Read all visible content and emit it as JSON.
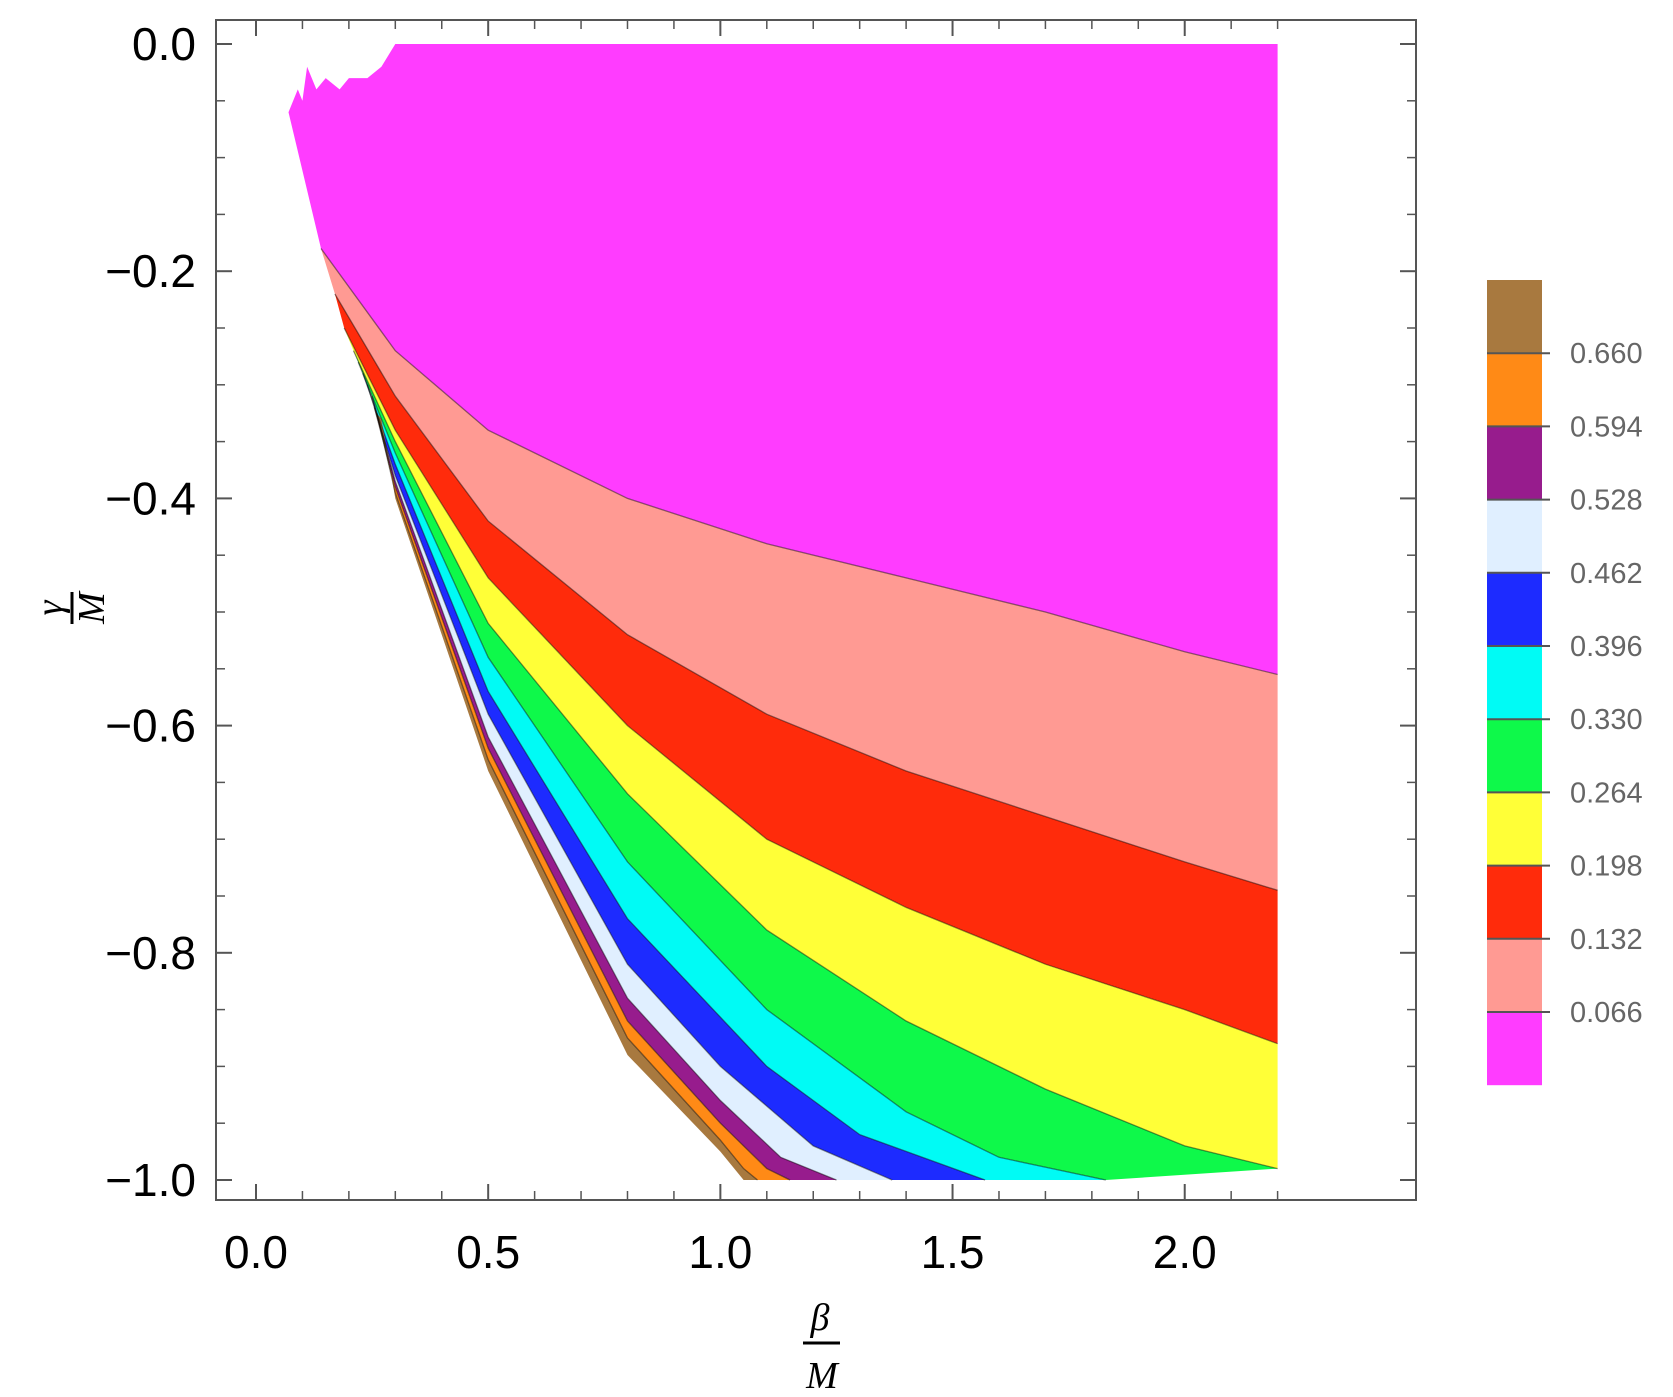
{
  "chart_data": {
    "type": "contour",
    "xlabel": {
      "numerator": "β",
      "denominator": "M"
    },
    "ylabel": {
      "numerator": "γ",
      "denominator": "M"
    },
    "xlim": [
      0.0,
      2.25
    ],
    "ylim": [
      -1.0,
      0.0
    ],
    "x_ticks": [
      {
        "value": 0.0,
        "label": "0.0"
      },
      {
        "value": 0.5,
        "label": "0.5"
      },
      {
        "value": 1.0,
        "label": "1.0"
      },
      {
        "value": 1.5,
        "label": "1.5"
      },
      {
        "value": 2.0,
        "label": "2.0"
      }
    ],
    "y_ticks": [
      {
        "value": 0.0,
        "label": "0.0"
      },
      {
        "value": -0.2,
        "label": "-0.2"
      },
      {
        "value": -0.4,
        "label": "-0.4"
      },
      {
        "value": -0.6,
        "label": "-0.6"
      },
      {
        "value": -0.8,
        "label": "-0.8"
      },
      {
        "value": -1.0,
        "label": "-1.0"
      }
    ],
    "legend": {
      "placement": "right",
      "levels": [
        "0.066",
        "0.132",
        "0.198",
        "0.264",
        "0.330",
        "0.396",
        "0.462",
        "0.528",
        "0.594",
        "0.660"
      ],
      "colors": [
        "#ff3cff",
        "#ff9a93",
        "#ff2b0b",
        "#ffff37",
        "#0ef94a",
        "#00fbf5",
        "#1d2bff",
        "#e0efff",
        "#971c8d",
        "#ff8a16",
        "#a8793f"
      ]
    },
    "x_max_data": 2.2,
    "boundaries": [
      {
        "level": "0.066",
        "points": [
          [
            0.14,
            -0.18
          ],
          [
            0.3,
            -0.27
          ],
          [
            0.5,
            -0.34
          ],
          [
            0.8,
            -0.4
          ],
          [
            1.1,
            -0.44
          ],
          [
            1.4,
            -0.47
          ],
          [
            1.7,
            -0.5
          ],
          [
            2.0,
            -0.535
          ],
          [
            2.2,
            -0.555
          ]
        ]
      },
      {
        "level": "0.132",
        "points": [
          [
            0.17,
            -0.22
          ],
          [
            0.3,
            -0.31
          ],
          [
            0.5,
            -0.42
          ],
          [
            0.8,
            -0.52
          ],
          [
            1.1,
            -0.59
          ],
          [
            1.4,
            -0.64
          ],
          [
            1.7,
            -0.68
          ],
          [
            2.0,
            -0.72
          ],
          [
            2.2,
            -0.745
          ]
        ]
      },
      {
        "level": "0.198",
        "points": [
          [
            0.19,
            -0.25
          ],
          [
            0.3,
            -0.34
          ],
          [
            0.5,
            -0.47
          ],
          [
            0.8,
            -0.6
          ],
          [
            1.1,
            -0.7
          ],
          [
            1.4,
            -0.76
          ],
          [
            1.7,
            -0.81
          ],
          [
            2.0,
            -0.85
          ],
          [
            2.2,
            -0.88
          ]
        ]
      },
      {
        "level": "0.264",
        "points": [
          [
            0.21,
            -0.27
          ],
          [
            0.3,
            -0.35
          ],
          [
            0.5,
            -0.51
          ],
          [
            0.8,
            -0.66
          ],
          [
            1.1,
            -0.78
          ],
          [
            1.4,
            -0.86
          ],
          [
            1.7,
            -0.92
          ],
          [
            2.0,
            -0.97
          ],
          [
            2.2,
            -0.99
          ]
        ]
      },
      {
        "level": "0.330",
        "points": [
          [
            0.22,
            -0.28
          ],
          [
            0.3,
            -0.36
          ],
          [
            0.5,
            -0.54
          ],
          [
            0.8,
            -0.72
          ],
          [
            1.1,
            -0.85
          ],
          [
            1.4,
            -0.94
          ],
          [
            1.6,
            -0.98
          ],
          [
            1.83,
            -1.0
          ]
        ]
      },
      {
        "level": "0.396",
        "points": [
          [
            0.23,
            -0.29
          ],
          [
            0.3,
            -0.37
          ],
          [
            0.5,
            -0.57
          ],
          [
            0.8,
            -0.77
          ],
          [
            1.1,
            -0.9
          ],
          [
            1.3,
            -0.96
          ],
          [
            1.57,
            -1.0
          ]
        ]
      },
      {
        "level": "0.462",
        "points": [
          [
            0.24,
            -0.3
          ],
          [
            0.3,
            -0.38
          ],
          [
            0.5,
            -0.59
          ],
          [
            0.8,
            -0.81
          ],
          [
            1.0,
            -0.9
          ],
          [
            1.2,
            -0.97
          ],
          [
            1.37,
            -1.0
          ]
        ]
      },
      {
        "level": "0.528",
        "points": [
          [
            0.25,
            -0.31
          ],
          [
            0.3,
            -0.385
          ],
          [
            0.5,
            -0.61
          ],
          [
            0.8,
            -0.84
          ],
          [
            1.0,
            -0.93
          ],
          [
            1.13,
            -0.98
          ],
          [
            1.25,
            -1.0
          ]
        ]
      },
      {
        "level": "0.594",
        "points": [
          [
            0.255,
            -0.32
          ],
          [
            0.3,
            -0.39
          ],
          [
            0.5,
            -0.62
          ],
          [
            0.8,
            -0.86
          ],
          [
            1.0,
            -0.95
          ],
          [
            1.1,
            -0.99
          ],
          [
            1.15,
            -1.0
          ]
        ]
      },
      {
        "level": "0.660",
        "points": [
          [
            0.26,
            -0.325
          ],
          [
            0.3,
            -0.395
          ],
          [
            0.5,
            -0.63
          ],
          [
            0.8,
            -0.875
          ],
          [
            1.0,
            -0.965
          ],
          [
            1.05,
            -0.99
          ],
          [
            1.08,
            -1.0
          ]
        ]
      },
      {
        "level": "edge",
        "points": [
          [
            0.27,
            -0.33
          ],
          [
            0.3,
            -0.4
          ],
          [
            0.5,
            -0.64
          ],
          [
            0.8,
            -0.89
          ],
          [
            1.0,
            -0.975
          ],
          [
            1.05,
            -1.0
          ]
        ]
      }
    ],
    "top_region_edge": [
      [
        0.07,
        -0.06
      ],
      [
        0.09,
        -0.04
      ],
      [
        0.1,
        -0.05
      ],
      [
        0.11,
        -0.02
      ],
      [
        0.13,
        -0.04
      ],
      [
        0.15,
        -0.03
      ],
      [
        0.18,
        -0.04
      ],
      [
        0.2,
        -0.03
      ],
      [
        0.24,
        -0.03
      ],
      [
        0.27,
        -0.02
      ],
      [
        0.3,
        0.0
      ]
    ]
  }
}
